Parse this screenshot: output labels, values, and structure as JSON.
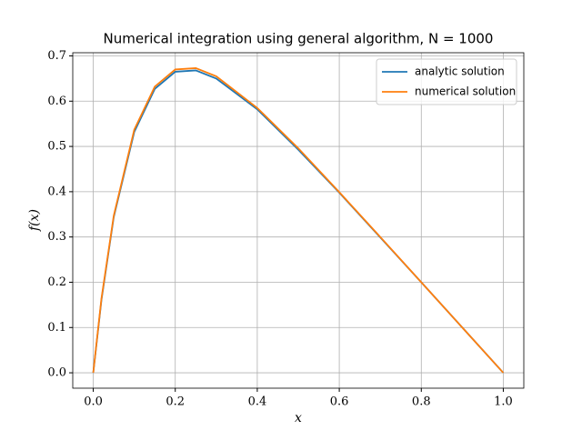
{
  "chart_data": {
    "type": "line",
    "title": "Numerical integration using general algorithm, N = 1000",
    "x_label": "x",
    "y_label": "f(x)",
    "x": [
      0,
      0.02,
      0.05,
      0.1,
      0.15,
      0.2,
      0.25,
      0.3,
      0.4,
      0.5,
      0.6,
      0.7,
      0.8,
      0.9,
      1.0
    ],
    "series": [
      {
        "name": "analytic solution",
        "color": "#1f77b4",
        "values": [
          0,
          0.161,
          0.344,
          0.532,
          0.627,
          0.665,
          0.668,
          0.65,
          0.582,
          0.493,
          0.398,
          0.299,
          0.2,
          0.1,
          0
        ]
      },
      {
        "name": "numerical solution",
        "color": "#ff7f0e",
        "values": [
          0,
          0.164,
          0.347,
          0.537,
          0.632,
          0.67,
          0.673,
          0.655,
          0.585,
          0.496,
          0.399,
          0.3,
          0.2,
          0.1,
          0
        ]
      }
    ],
    "xlim": [
      -0.05,
      1.05
    ],
    "ylim": [
      -0.034,
      0.707
    ],
    "xticks": [
      {
        "value": 0,
        "label": "0.0"
      },
      0.2,
      0.4,
      0.6,
      0.8,
      {
        "value": 1,
        "label": "1.0"
      }
    ],
    "yticks": [
      {
        "value": 0,
        "label": "0.0"
      },
      0.1,
      0.2,
      0.3,
      0.4,
      0.5,
      0.6,
      0.7
    ],
    "grid": true,
    "legend": "upper right"
  }
}
